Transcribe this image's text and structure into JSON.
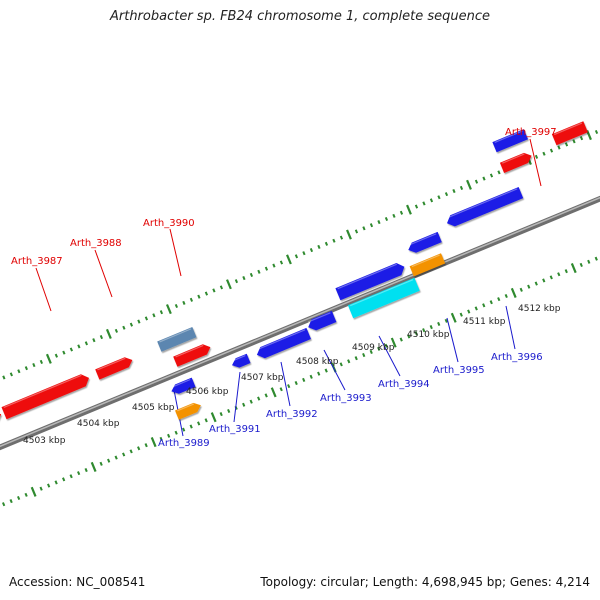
{
  "title": "Arthrobacter sp. FB24 chromosome 1, complete sequence",
  "footer": {
    "accession": "Accession: NC_008541",
    "summary": "Topology: circular; Length: 4,698,945 bp; Genes: 4,214"
  },
  "colors": {
    "backbone": "#8c8c8c",
    "tick": "#2f8a2f",
    "forward_label": "#e00000",
    "reverse_label": "#1a1acc",
    "red_gene": "#ee1111",
    "blue_gene": "#1a1ae6",
    "steel_gene": "#5b86b0",
    "cyan_gene": "#00e0f0",
    "orange_gene": "#f39200",
    "tick_label": "#222222"
  },
  "kbp_labels": [
    "4503 kbp",
    "4504 kbp",
    "4505 kbp",
    "4506 kbp",
    "4507 kbp",
    "4508 kbp",
    "4509 kbp",
    "4510 kbp",
    "4511 kbp",
    "4512 kbp"
  ],
  "forward_labels": [
    "Arth_3987",
    "Arth_3988",
    "Arth_3990",
    "Arth_3997"
  ],
  "reverse_labels": [
    "Arth_3989",
    "Arth_3991",
    "Arth_3992",
    "Arth_3993",
    "Arth_3994",
    "Arth_3995",
    "Arth_3996"
  ]
}
